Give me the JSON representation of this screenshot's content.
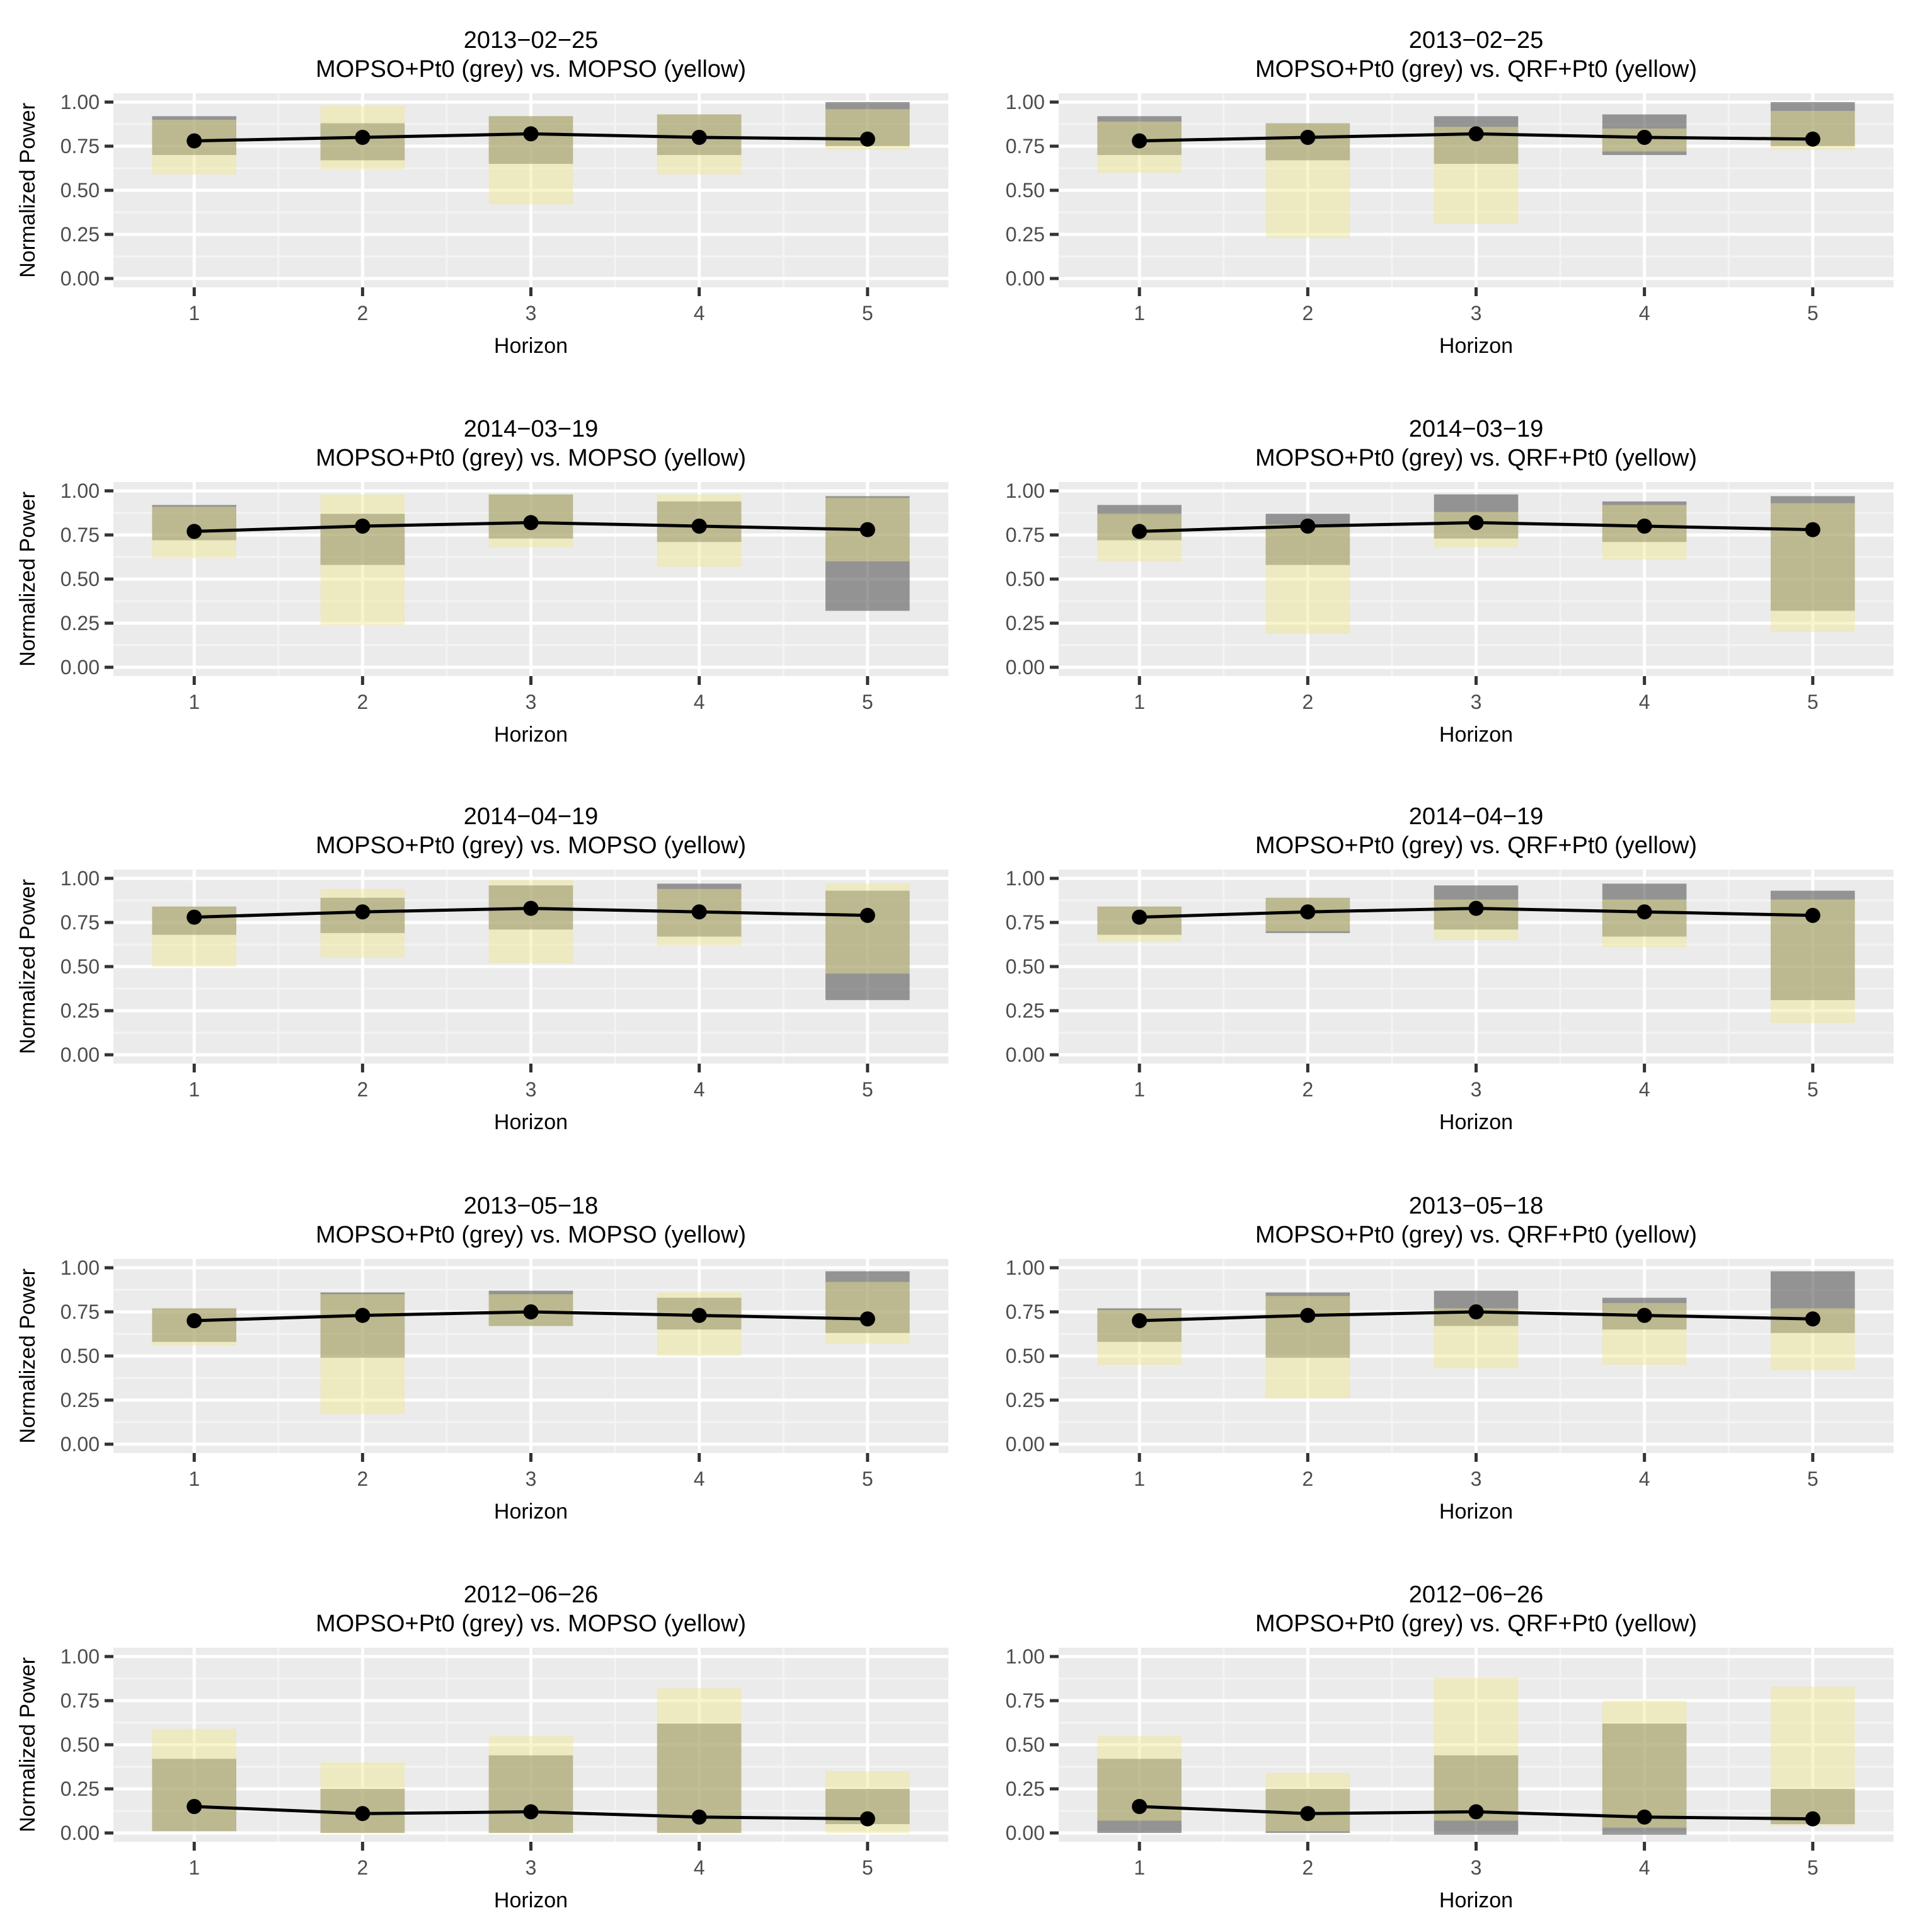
{
  "colors": {
    "panel_background": "#ebebeb",
    "grid_major": "#ffffff",
    "grid_minor": "#f4f4f4",
    "grey_band": "#595959",
    "yellow_band": "#f0e68c",
    "mean_line": "#000000",
    "tick": "#333333"
  },
  "chart_data": [
    {
      "type": "line",
      "date": "2013−02−25",
      "title": "MOPSO+Pt0 (grey) vs. MOPSO (yellow)",
      "xlabel": "Horizon",
      "ylabel": "Normalized Power",
      "x": [
        1,
        2,
        3,
        4,
        5
      ],
      "ylim": [
        0,
        1
      ],
      "yticks": [
        "0.00",
        "0.25",
        "0.50",
        "0.75",
        "1.00"
      ],
      "mean": [
        0.78,
        0.8,
        0.82,
        0.8,
        0.79
      ],
      "grey_band": [
        [
          0.7,
          0.92
        ],
        [
          0.67,
          0.88
        ],
        [
          0.65,
          0.92
        ],
        [
          0.7,
          0.93
        ],
        [
          0.75,
          1.0
        ]
      ],
      "yellow_band": [
        [
          0.59,
          0.9
        ],
        [
          0.62,
          0.98
        ],
        [
          0.42,
          0.92
        ],
        [
          0.59,
          0.93
        ],
        [
          0.73,
          0.96
        ]
      ]
    },
    {
      "type": "line",
      "date": "2013−02−25",
      "title": "MOPSO+Pt0 (grey) vs. QRF+Pt0 (yellow)",
      "xlabel": "Horizon",
      "ylabel": "",
      "x": [
        1,
        2,
        3,
        4,
        5
      ],
      "ylim": [
        0,
        1
      ],
      "yticks": [
        "0.00",
        "0.25",
        "0.50",
        "0.75",
        "1.00"
      ],
      "mean": [
        0.78,
        0.8,
        0.82,
        0.8,
        0.79
      ],
      "grey_band": [
        [
          0.7,
          0.92
        ],
        [
          0.67,
          0.88
        ],
        [
          0.65,
          0.92
        ],
        [
          0.7,
          0.93
        ],
        [
          0.75,
          1.0
        ]
      ],
      "yellow_band": [
        [
          0.6,
          0.89
        ],
        [
          0.23,
          0.88
        ],
        [
          0.31,
          0.86
        ],
        [
          0.72,
          0.85
        ],
        [
          0.73,
          0.95
        ]
      ]
    },
    {
      "type": "line",
      "date": "2014−03−19",
      "title": "MOPSO+Pt0 (grey) vs. MOPSO (yellow)",
      "xlabel": "Horizon",
      "ylabel": "Normalized Power",
      "x": [
        1,
        2,
        3,
        4,
        5
      ],
      "ylim": [
        0,
        1
      ],
      "yticks": [
        "0.00",
        "0.25",
        "0.50",
        "0.75",
        "1.00"
      ],
      "mean": [
        0.77,
        0.8,
        0.82,
        0.8,
        0.78
      ],
      "grey_band": [
        [
          0.72,
          0.92
        ],
        [
          0.58,
          0.87
        ],
        [
          0.73,
          0.98
        ],
        [
          0.71,
          0.94
        ],
        [
          0.32,
          0.97
        ]
      ],
      "yellow_band": [
        [
          0.62,
          0.91
        ],
        [
          0.24,
          0.98
        ],
        [
          0.68,
          0.98
        ],
        [
          0.57,
          0.98
        ],
        [
          0.6,
          0.96
        ]
      ]
    },
    {
      "type": "line",
      "date": "2014−03−19",
      "title": "MOPSO+Pt0 (grey) vs. QRF+Pt0 (yellow)",
      "xlabel": "Horizon",
      "ylabel": "",
      "x": [
        1,
        2,
        3,
        4,
        5
      ],
      "ylim": [
        0,
        1
      ],
      "yticks": [
        "0.00",
        "0.25",
        "0.50",
        "0.75",
        "1.00"
      ],
      "mean": [
        0.77,
        0.8,
        0.82,
        0.8,
        0.78
      ],
      "grey_band": [
        [
          0.72,
          0.92
        ],
        [
          0.58,
          0.87
        ],
        [
          0.73,
          0.98
        ],
        [
          0.71,
          0.94
        ],
        [
          0.32,
          0.97
        ]
      ],
      "yellow_band": [
        [
          0.6,
          0.87
        ],
        [
          0.19,
          0.81
        ],
        [
          0.68,
          0.88
        ],
        [
          0.61,
          0.92
        ],
        [
          0.2,
          0.93
        ]
      ]
    },
    {
      "type": "line",
      "date": "2014−04−19",
      "title": "MOPSO+Pt0 (grey) vs. MOPSO (yellow)",
      "xlabel": "Horizon",
      "ylabel": "Normalized Power",
      "x": [
        1,
        2,
        3,
        4,
        5
      ],
      "ylim": [
        0,
        1
      ],
      "yticks": [
        "0.00",
        "0.25",
        "0.50",
        "0.75",
        "1.00"
      ],
      "mean": [
        0.78,
        0.81,
        0.83,
        0.81,
        0.79
      ],
      "grey_band": [
        [
          0.68,
          0.84
        ],
        [
          0.69,
          0.89
        ],
        [
          0.71,
          0.96
        ],
        [
          0.67,
          0.97
        ],
        [
          0.31,
          0.93
        ]
      ],
      "yellow_band": [
        [
          0.5,
          0.84
        ],
        [
          0.55,
          0.94
        ],
        [
          0.52,
          0.99
        ],
        [
          0.62,
          0.94
        ],
        [
          0.46,
          0.97
        ]
      ]
    },
    {
      "type": "line",
      "date": "2014−04−19",
      "title": "MOPSO+Pt0 (grey) vs. QRF+Pt0 (yellow)",
      "xlabel": "Horizon",
      "ylabel": "",
      "x": [
        1,
        2,
        3,
        4,
        5
      ],
      "ylim": [
        0,
        1
      ],
      "yticks": [
        "0.00",
        "0.25",
        "0.50",
        "0.75",
        "1.00"
      ],
      "mean": [
        0.78,
        0.81,
        0.83,
        0.81,
        0.79
      ],
      "grey_band": [
        [
          0.68,
          0.84
        ],
        [
          0.69,
          0.89
        ],
        [
          0.71,
          0.96
        ],
        [
          0.67,
          0.97
        ],
        [
          0.31,
          0.93
        ]
      ],
      "yellow_band": [
        [
          0.64,
          0.84
        ],
        [
          0.7,
          0.89
        ],
        [
          0.65,
          0.88
        ],
        [
          0.61,
          0.88
        ],
        [
          0.18,
          0.88
        ]
      ]
    },
    {
      "type": "line",
      "date": "2013−05−18",
      "title": "MOPSO+Pt0 (grey) vs. MOPSO (yellow)",
      "xlabel": "Horizon",
      "ylabel": "Normalized Power",
      "x": [
        1,
        2,
        3,
        4,
        5
      ],
      "ylim": [
        0,
        1
      ],
      "yticks": [
        "0.00",
        "0.25",
        "0.50",
        "0.75",
        "1.00"
      ],
      "mean": [
        0.7,
        0.73,
        0.75,
        0.73,
        0.71
      ],
      "grey_band": [
        [
          0.58,
          0.77
        ],
        [
          0.49,
          0.86
        ],
        [
          0.67,
          0.87
        ],
        [
          0.65,
          0.83
        ],
        [
          0.63,
          0.98
        ]
      ],
      "yellow_band": [
        [
          0.56,
          0.77
        ],
        [
          0.17,
          0.85
        ],
        [
          0.67,
          0.85
        ],
        [
          0.5,
          0.86
        ],
        [
          0.57,
          0.92
        ]
      ]
    },
    {
      "type": "line",
      "date": "2013−05−18",
      "title": "MOPSO+Pt0 (grey) vs. QRF+Pt0 (yellow)",
      "xlabel": "Horizon",
      "ylabel": "",
      "x": [
        1,
        2,
        3,
        4,
        5
      ],
      "ylim": [
        0,
        1
      ],
      "yticks": [
        "0.00",
        "0.25",
        "0.50",
        "0.75",
        "1.00"
      ],
      "mean": [
        0.7,
        0.73,
        0.75,
        0.73,
        0.71
      ],
      "grey_band": [
        [
          0.58,
          0.77
        ],
        [
          0.49,
          0.86
        ],
        [
          0.67,
          0.87
        ],
        [
          0.65,
          0.83
        ],
        [
          0.63,
          0.98
        ]
      ],
      "yellow_band": [
        [
          0.45,
          0.76
        ],
        [
          0.26,
          0.84
        ],
        [
          0.43,
          0.77
        ],
        [
          0.45,
          0.8
        ],
        [
          0.42,
          0.77
        ]
      ]
    },
    {
      "type": "line",
      "date": "2012−06−26",
      "title": "MOPSO+Pt0 (grey) vs. MOPSO (yellow)",
      "xlabel": "Horizon",
      "ylabel": "Normalized Power",
      "x": [
        1,
        2,
        3,
        4,
        5
      ],
      "ylim": [
        0,
        1
      ],
      "yticks": [
        "0.00",
        "0.25",
        "0.50",
        "0.75",
        "1.00"
      ],
      "mean": [
        0.15,
        0.11,
        0.12,
        0.09,
        0.08
      ],
      "grey_band": [
        [
          0.01,
          0.42
        ],
        [
          0.0,
          0.25
        ],
        [
          0.0,
          0.44
        ],
        [
          0.0,
          0.62
        ],
        [
          0.05,
          0.25
        ]
      ],
      "yellow_band": [
        [
          0.01,
          0.59
        ],
        [
          0.0,
          0.4
        ],
        [
          0.0,
          0.55
        ],
        [
          0.0,
          0.82
        ],
        [
          0.0,
          0.35
        ]
      ]
    },
    {
      "type": "line",
      "date": "2012−06−26",
      "title": "MOPSO+Pt0 (grey) vs. QRF+Pt0 (yellow)",
      "xlabel": "Horizon",
      "ylabel": "",
      "x": [
        1,
        2,
        3,
        4,
        5
      ],
      "ylim": [
        0,
        1
      ],
      "yticks": [
        "0.00",
        "0.25",
        "0.50",
        "0.75",
        "1.00"
      ],
      "mean": [
        0.15,
        0.11,
        0.12,
        0.09,
        0.08
      ],
      "grey_band": [
        [
          0.0,
          0.42
        ],
        [
          0.0,
          0.25
        ],
        [
          -0.01,
          0.44
        ],
        [
          -0.01,
          0.62
        ],
        [
          0.05,
          0.25
        ]
      ],
      "yellow_band": [
        [
          0.07,
          0.55
        ],
        [
          0.01,
          0.34
        ],
        [
          0.07,
          0.88
        ],
        [
          0.03,
          0.75
        ],
        [
          0.04,
          0.83
        ]
      ]
    }
  ]
}
